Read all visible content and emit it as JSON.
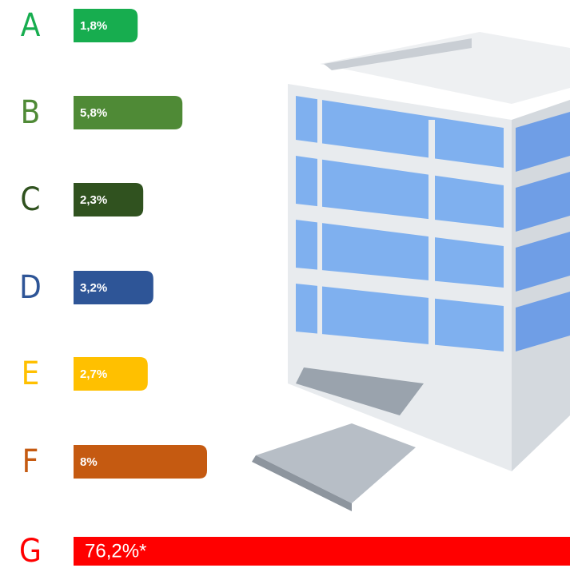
{
  "chart_data": {
    "type": "bar",
    "orientation": "horizontal",
    "categories": [
      "A",
      "B",
      "C",
      "D",
      "E",
      "F",
      "G"
    ],
    "values": [
      1.8,
      5.8,
      2.3,
      3.2,
      2.7,
      8,
      76.2
    ],
    "value_labels": [
      "1,8%",
      "5,8%",
      "2,3%",
      "3,2%",
      "2,7%",
      "8%",
      "76,2%*"
    ],
    "colors": [
      "#17ad4f",
      "#4f8a36",
      "#30521f",
      "#2e5597",
      "#ffc000",
      "#c55a11",
      "#ff0000"
    ]
  }
}
